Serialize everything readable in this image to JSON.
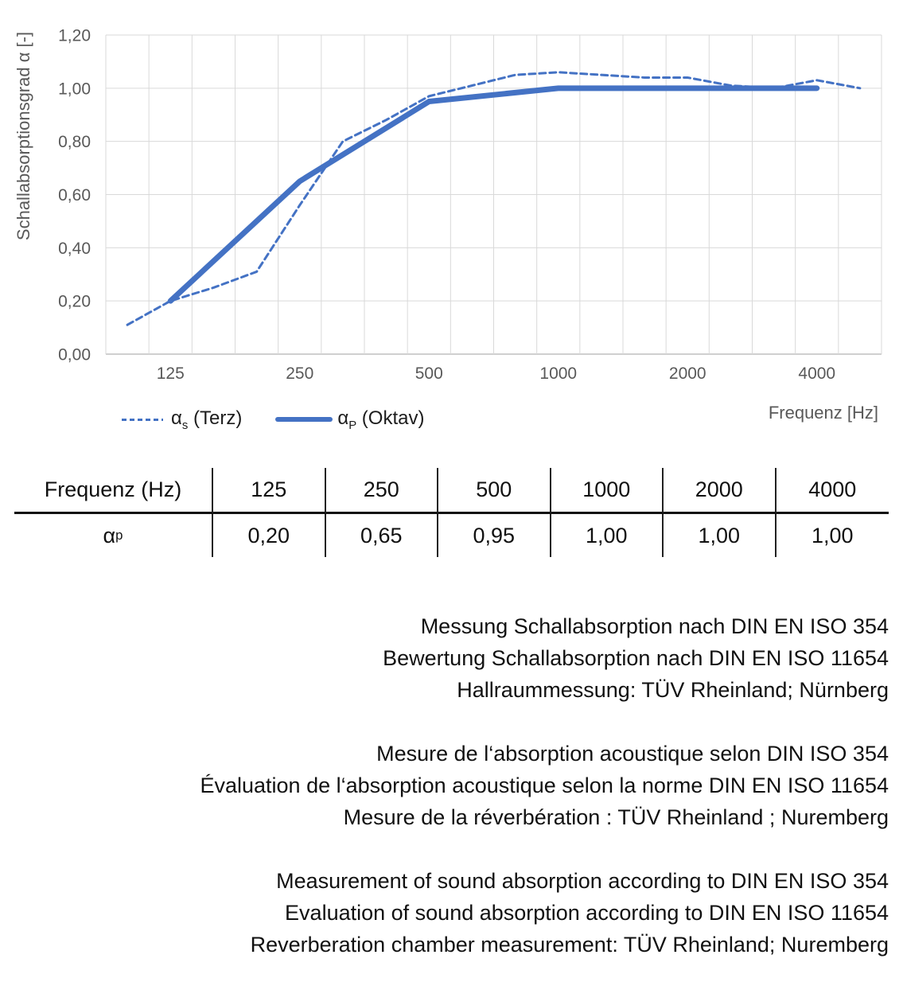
{
  "chart_data": {
    "type": "line",
    "title": "",
    "ylabel": "Schallabsorptionsgrad α [-]",
    "xlabel": "Frequenz [Hz]",
    "ylim": [
      0,
      1.2
    ],
    "yticks": [
      0,
      0.2,
      0.4,
      0.6,
      0.8,
      1.0,
      1.2
    ],
    "ytick_labels": [
      "0,00",
      "0,20",
      "0,40",
      "0,60",
      "0,80",
      "1,00",
      "1,20"
    ],
    "x_axis_type": "category-third-octave",
    "x_categories": [
      "100",
      "125",
      "160",
      "200",
      "250",
      "315",
      "400",
      "500",
      "630",
      "800",
      "1000",
      "1250",
      "1600",
      "2000",
      "2500",
      "3150",
      "4000",
      "5000"
    ],
    "x_tick_labels": [
      "125",
      "250",
      "500",
      "1000",
      "2000",
      "4000"
    ],
    "grid": true,
    "grid_color": "#D9D9D9",
    "axis_line_color": "#BFBFBF",
    "tick_color": "#595959",
    "legend_position": "bottom-left",
    "series": [
      {
        "name": "αs (Terz)",
        "line_style": "dashed",
        "color": "#4472C4",
        "stroke_width": 3,
        "x": [
          "100",
          "125",
          "160",
          "200",
          "250",
          "315",
          "400",
          "500",
          "630",
          "800",
          "1000",
          "1250",
          "1600",
          "2000",
          "2500",
          "3150",
          "4000",
          "5000"
        ],
        "values": [
          0.11,
          0.2,
          0.25,
          0.31,
          0.56,
          0.8,
          0.88,
          0.97,
          1.01,
          1.05,
          1.06,
          1.05,
          1.04,
          1.04,
          1.01,
          1.0,
          1.03,
          1.0
        ]
      },
      {
        "name": "αP (Oktav)",
        "line_style": "solid",
        "color": "#4472C4",
        "stroke_width": 7,
        "x": [
          "125",
          "250",
          "500",
          "1000",
          "2000",
          "4000"
        ],
        "values": [
          0.2,
          0.65,
          0.95,
          1.0,
          1.0,
          1.0
        ]
      }
    ]
  },
  "legend": [
    {
      "symbol": "α",
      "sub": "s",
      "rest": " (Terz)"
    },
    {
      "symbol": "α",
      "sub": "P",
      "rest": " (Oktav)"
    }
  ],
  "table": {
    "header_label": "Frequenz (Hz)",
    "row_label": {
      "symbol": "α",
      "sub": "p"
    },
    "frequencies": [
      "125",
      "250",
      "500",
      "1000",
      "2000",
      "4000"
    ],
    "values": [
      "0,20",
      "0,65",
      "0,95",
      "1,00",
      "1,00",
      "1,00"
    ]
  },
  "notes": {
    "german": [
      "Messung Schallabsorption nach DIN EN ISO 354",
      "Bewertung Schallabsorption nach DIN EN ISO 11654",
      "Hallraummessung: TÜV Rheinland; Nürnberg"
    ],
    "french": [
      "Mesure de l‘absorption acoustique selon DIN ISO 354",
      "Évaluation de l‘absorption acoustique selon la norme DIN EN ISO 11654",
      "Mesure de la réverbération : TÜV Rheinland ; Nuremberg"
    ],
    "english": [
      "Measurement of sound absorption according to DIN EN ISO 354",
      "Evaluation of sound absorption according to DIN EN ISO 11654",
      "Reverberation chamber measurement: TÜV Rheinland; Nuremberg"
    ]
  }
}
